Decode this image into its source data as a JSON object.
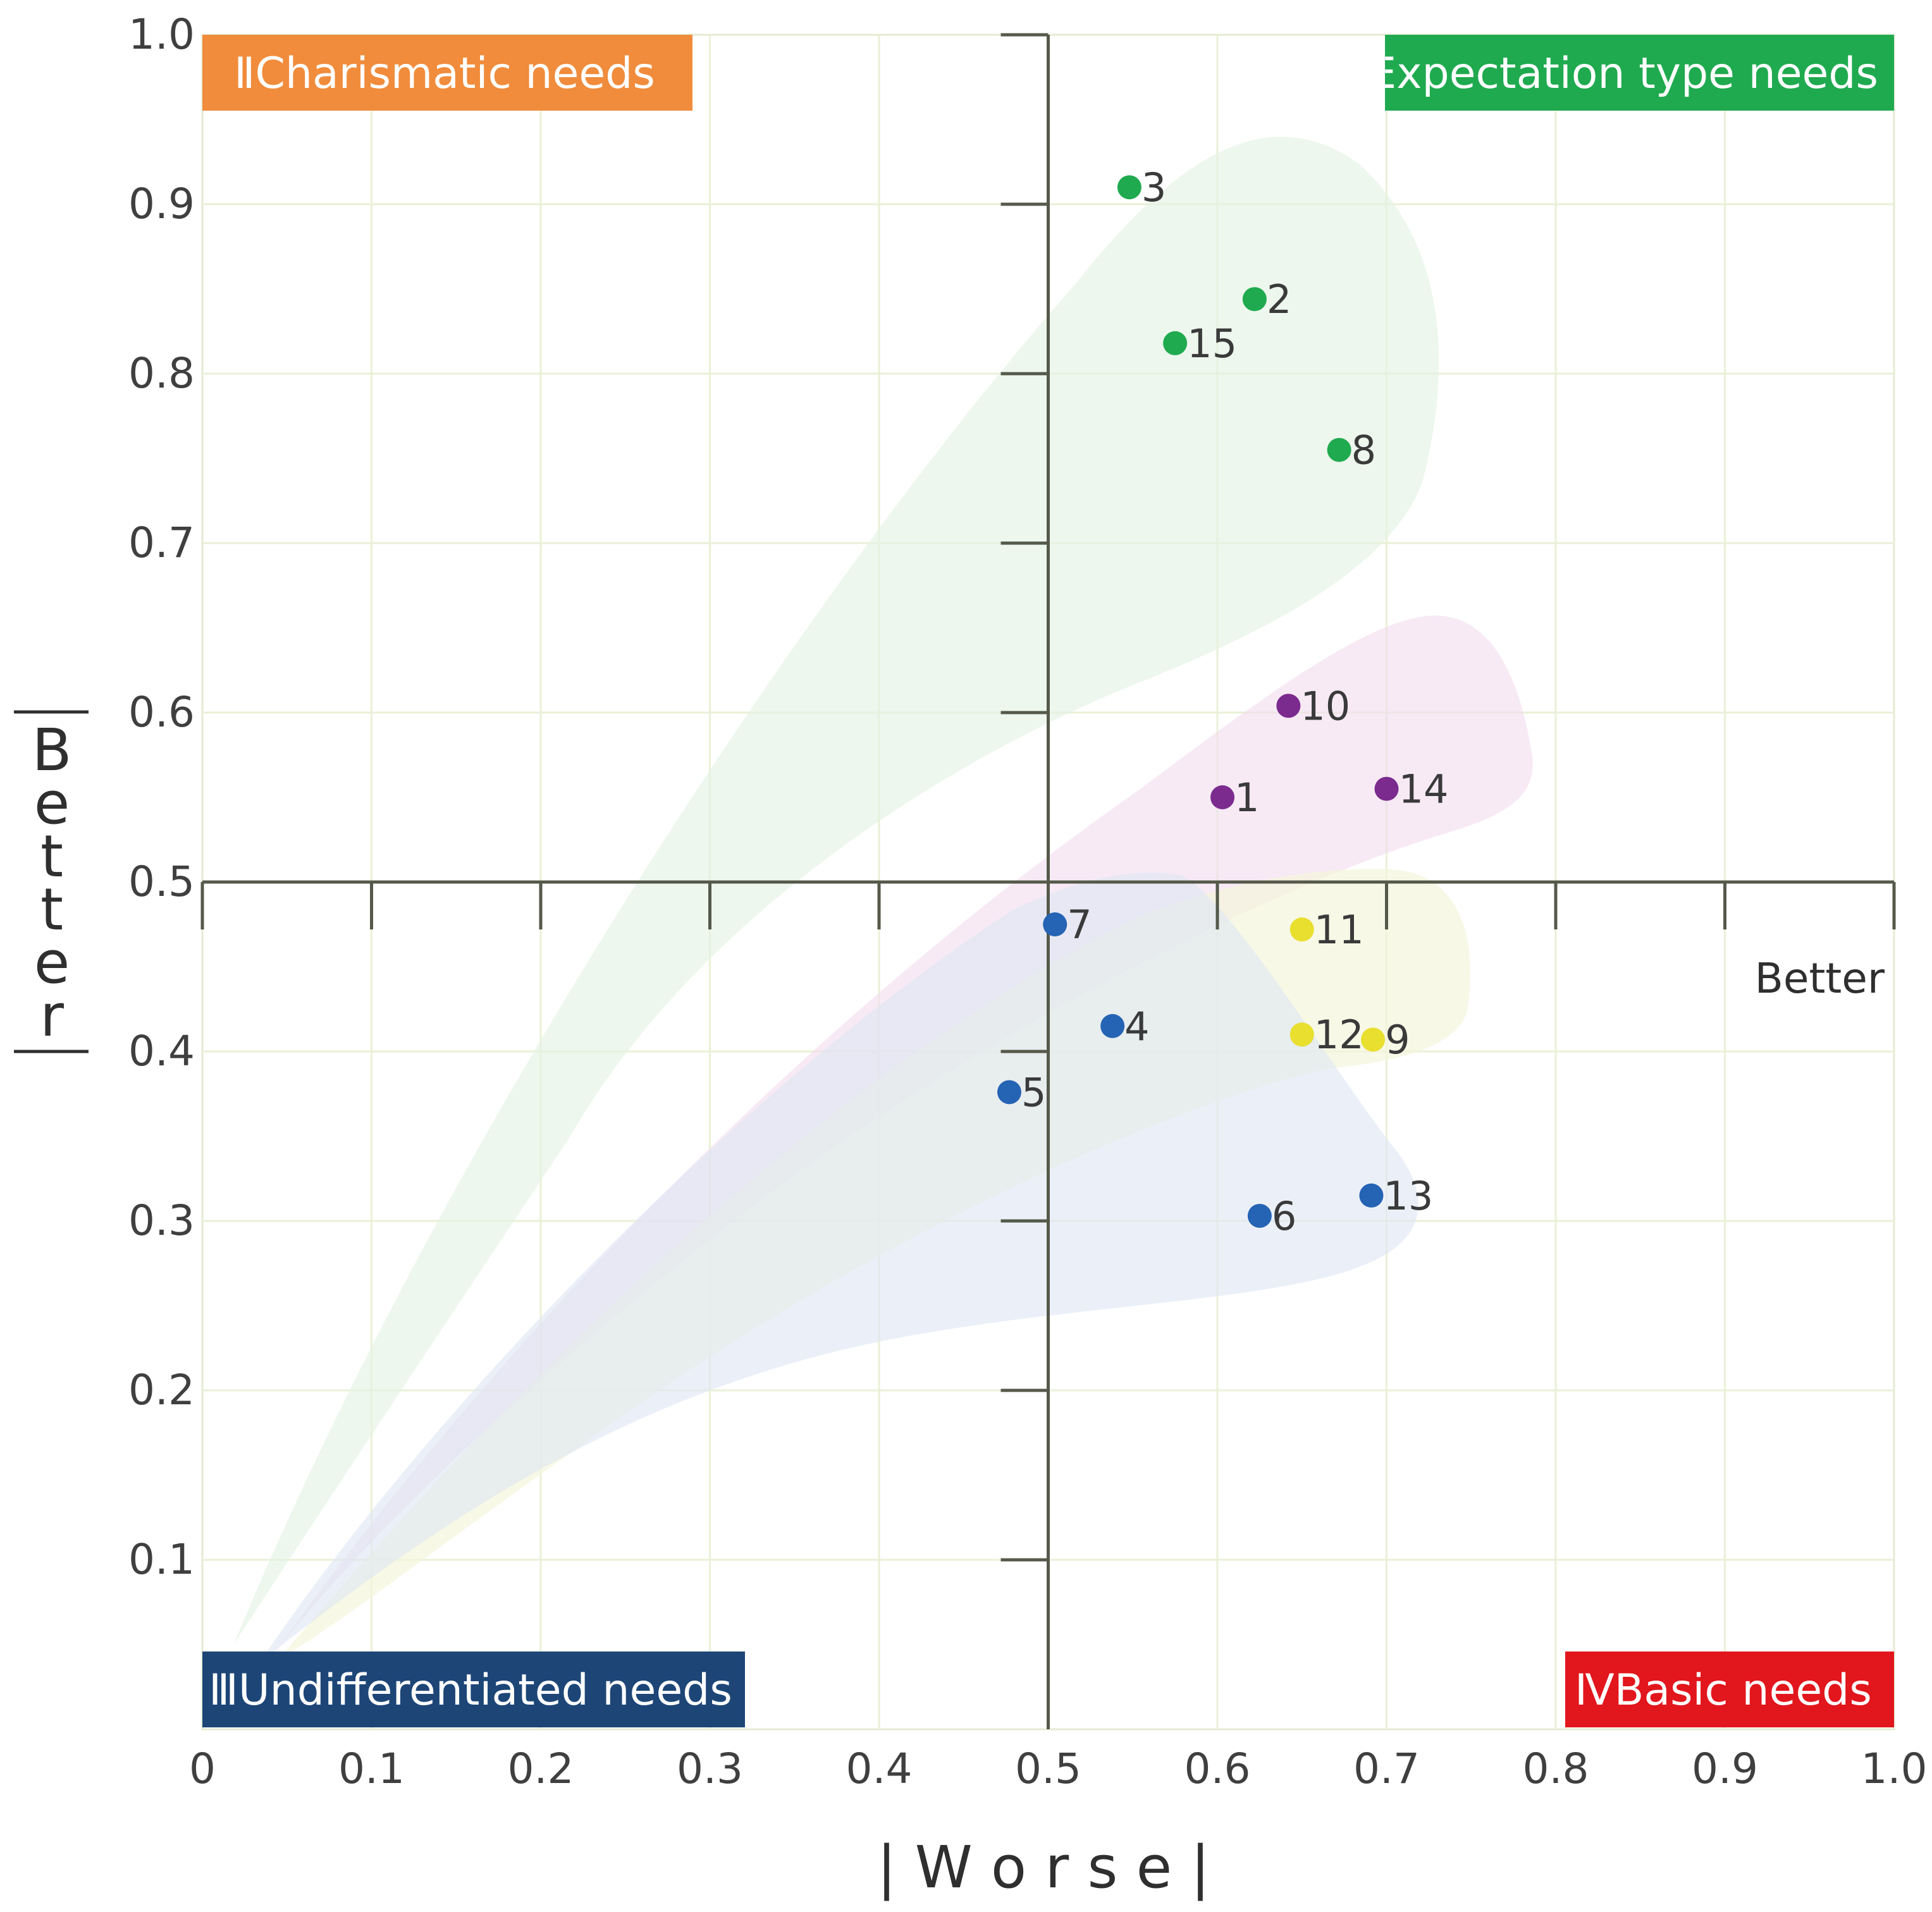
{
  "chart_data": {
    "type": "scatter",
    "title": "",
    "xlabel": "| W o r s e |",
    "ylabel": "B e t t e r",
    "inner_label": "Better",
    "xlim": [
      0,
      1.0
    ],
    "ylim": [
      0,
      1.0
    ],
    "x_ticks": [
      0,
      0.1,
      0.2,
      0.3,
      0.4,
      0.5,
      0.6,
      0.7,
      0.8,
      0.9,
      1.0
    ],
    "y_ticks": [
      0.1,
      0.2,
      0.3,
      0.4,
      0.5,
      0.6,
      0.7,
      0.8,
      0.9,
      1.0
    ],
    "x_tick_labels": [
      "0",
      "0.1",
      "0.2",
      "0.3",
      "0.4",
      "0.5",
      "0.6",
      "0.7",
      "0.8",
      "0.9",
      "1.0"
    ],
    "y_tick_labels": [
      "0.1",
      "0.2",
      "0.3",
      "0.4",
      "0.5",
      "0.6",
      "0.7",
      "0.8",
      "0.9",
      "1.0"
    ],
    "grid": true,
    "cross_point": [
      0.5,
      0.5
    ],
    "quadrants": [
      {
        "label": "I Expectation type needs",
        "position": "top-right",
        "color": "#1faa4f"
      },
      {
        "label": "ⅡCharismatic needs",
        "position": "top-left",
        "color": "#f08c3c"
      },
      {
        "label": "ⅢUndifferentiated needs",
        "position": "bottom-left",
        "color": "#1d4677"
      },
      {
        "label": "ⅣBasic needs",
        "position": "bottom-right",
        "color": "#e2161d"
      }
    ],
    "series": [
      {
        "name": "Expectation type",
        "color": "#1faa4f",
        "region_color": "#e3f2e3",
        "points": [
          {
            "label": "3",
            "x": 0.548,
            "y": 0.91
          },
          {
            "label": "2",
            "x": 0.622,
            "y": 0.844
          },
          {
            "label": "15",
            "x": 0.575,
            "y": 0.818
          },
          {
            "label": "8",
            "x": 0.672,
            "y": 0.755
          }
        ]
      },
      {
        "name": "Charismatic",
        "color": "#7b2a8e",
        "region_color": "#f1dcef",
        "points": [
          {
            "label": "10",
            "x": 0.642,
            "y": 0.604
          },
          {
            "label": "1",
            "x": 0.603,
            "y": 0.55
          },
          {
            "label": "14",
            "x": 0.7,
            "y": 0.555
          }
        ]
      },
      {
        "name": "Basic",
        "color": "#e8df2e",
        "region_color": "#f3f5dc",
        "points": [
          {
            "label": "11",
            "x": 0.65,
            "y": 0.472
          },
          {
            "label": "12",
            "x": 0.65,
            "y": 0.41
          },
          {
            "label": "9",
            "x": 0.692,
            "y": 0.407
          }
        ]
      },
      {
        "name": "Undifferentiated",
        "color": "#2563b4",
        "region_color": "#dde6f3",
        "points": [
          {
            "label": "7",
            "x": 0.504,
            "y": 0.475
          },
          {
            "label": "4",
            "x": 0.538,
            "y": 0.415
          },
          {
            "label": "5",
            "x": 0.477,
            "y": 0.376
          },
          {
            "label": "6",
            "x": 0.625,
            "y": 0.303
          },
          {
            "label": "13",
            "x": 0.691,
            "y": 0.315
          }
        ]
      }
    ]
  }
}
